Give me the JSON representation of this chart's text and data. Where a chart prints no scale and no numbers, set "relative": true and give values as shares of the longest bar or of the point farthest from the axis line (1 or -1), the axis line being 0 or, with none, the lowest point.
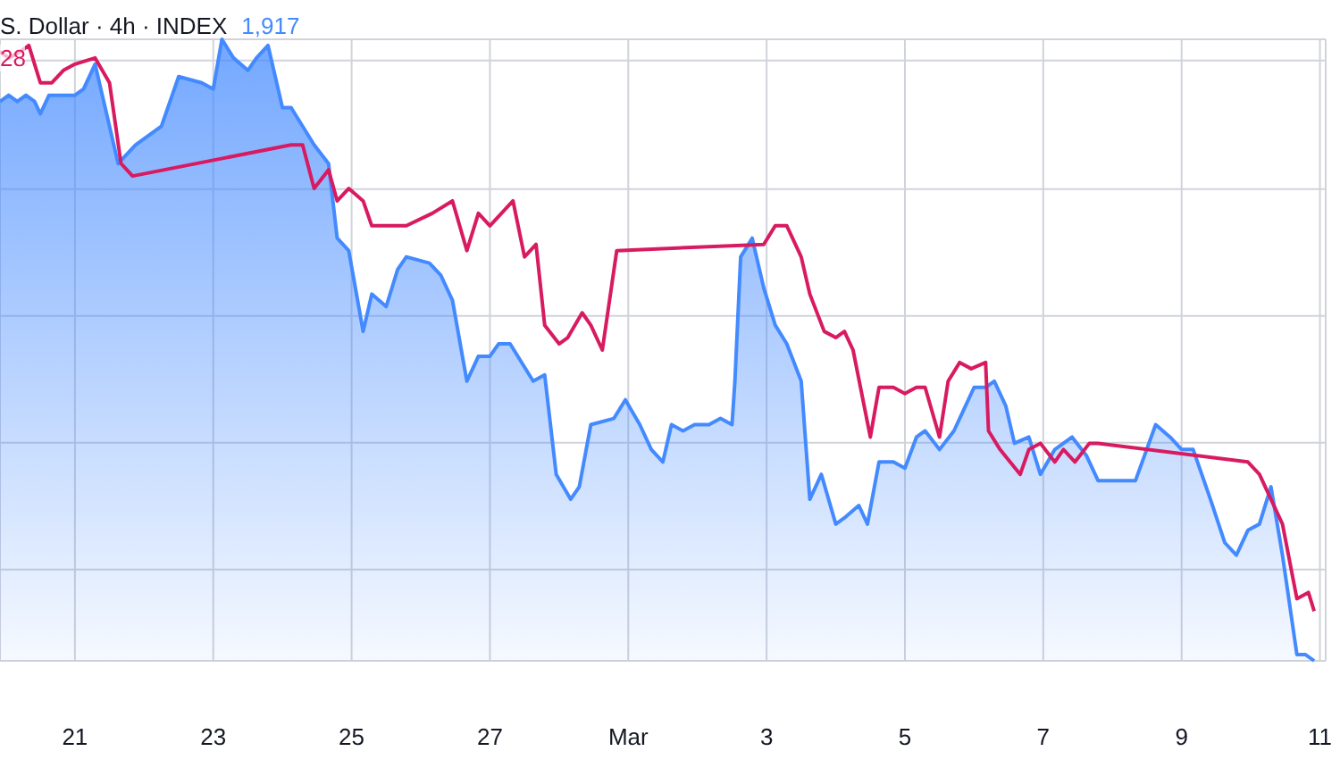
{
  "chart_data": {
    "type": "line",
    "title": "S. Dollar · 4h · INDEX",
    "annotations": [
      "1,917",
      "28"
    ],
    "relative": true,
    "grid": true,
    "xlim": [
      "--02-19T22:00",
      "--03-11T02:00"
    ],
    "xticks": [
      {
        "value": "--02-21",
        "label": "21"
      },
      {
        "value": "--02-23",
        "label": "23"
      },
      {
        "value": "--02-25",
        "label": "25"
      },
      {
        "value": "--02-27",
        "label": "27"
      },
      {
        "value": "--03-01",
        "label": "Mar"
      },
      {
        "value": "--03-03",
        "label": "3"
      },
      {
        "value": "--03-05",
        "label": "5"
      },
      {
        "value": "--03-07",
        "label": "7"
      },
      {
        "value": "--03-09",
        "label": "9"
      },
      {
        "value": "--03-11",
        "label": "11"
      }
    ],
    "series": [
      {
        "type": "area",
        "color": "#448aff",
        "x": [
          "--02-19T22:00",
          "--02-20T01:00",
          "--02-20T04:00",
          "--02-20T07:00",
          "--02-20T10:00",
          "--02-20T12:00",
          "--02-20T15:00",
          "--02-20T19:00",
          "--02-21T00:00",
          "--02-21T03:00",
          "--02-21T07:00",
          "--02-21T15:00",
          "--02-21T21:00",
          "--02-22T03:00",
          "--02-22T06:00",
          "--02-22T12:00",
          "--02-22T20:00",
          "--02-23T00:00",
          "--02-23T03:00",
          "--02-23T07:00",
          "--02-23T12:00",
          "--02-23T15:00",
          "--02-23T19:00",
          "--02-24T00:00",
          "--02-24T03:00",
          "--02-24T11:00",
          "--02-24T16:00",
          "--02-24T19:00",
          "--02-24T23:00",
          "--02-25T04:00",
          "--02-25T07:00",
          "--02-25T12:00",
          "--02-25T16:00",
          "--02-25T19:00",
          "--02-26T03:00",
          "--02-26T07:00",
          "--02-26T11:00",
          "--02-26T16:00",
          "--02-26T20:00",
          "--02-27T00:00",
          "--02-27T03:00",
          "--02-27T07:00",
          "--02-27T15:00",
          "--02-27T19:00",
          "--02-27T23:00",
          "--02-28T04:00",
          "--02-28T07:00",
          "--02-28T11:00",
          "--02-28T19:00",
          "--02-28T23:00",
          "--03-01T04:00",
          "--03-01T08:00",
          "--03-01T12:00",
          "--03-01T15:00",
          "--03-01T19:00",
          "--03-01T23:00",
          "--03-02T04:00",
          "--03-02T08:00",
          "--03-02T12:00",
          "--03-02T13:00",
          "--03-02T15:00",
          "--03-02T19:00",
          "--03-02T23:00",
          "--03-03T03:00",
          "--03-03T07:00",
          "--03-03T12:00",
          "--03-03T15:00",
          "--03-03T19:00",
          "--03-04T00:00",
          "--03-04T03:00",
          "--03-04T08:00",
          "--03-04T11:00",
          "--03-04T15:00",
          "--03-04T20:00",
          "--03-05T00:00",
          "--03-05T04:00",
          "--03-05T07:00",
          "--03-05T12:00",
          "--03-05T17:00",
          "--03-05T20:00",
          "--03-06T00:00",
          "--03-06T04:00",
          "--03-06T07:00",
          "--03-06T11:00",
          "--03-06T14:00",
          "--03-06T19:00",
          "--03-06T23:00",
          "--03-07T04:00",
          "--03-07T07:00",
          "--03-07T10:00",
          "--03-07T15:00",
          "--03-07T19:00",
          "--03-08T02:00",
          "--03-08T08:00",
          "--03-08T15:00",
          "--03-08T20:00",
          "--03-09T00:00",
          "--03-09T04:00",
          "--03-09T10:00",
          "--03-09T15:00",
          "--03-09T19:00",
          "--03-09T23:00",
          "--03-10T03:00",
          "--03-10T07:00",
          "--03-10T11:00",
          "--03-10T16:00",
          "--03-10T19:00",
          "--03-10T22:00"
        ],
        "values": [
          0.9,
          0.91,
          0.9,
          0.91,
          0.9,
          0.88,
          0.91,
          0.91,
          0.91,
          0.92,
          0.96,
          0.8,
          0.83,
          0.85,
          0.86,
          0.94,
          0.93,
          0.92,
          1.0,
          0.97,
          0.95,
          0.97,
          0.99,
          0.89,
          0.89,
          0.83,
          0.8,
          0.68,
          0.66,
          0.53,
          0.59,
          0.57,
          0.63,
          0.65,
          0.64,
          0.62,
          0.58,
          0.45,
          0.49,
          0.49,
          0.51,
          0.51,
          0.45,
          0.46,
          0.3,
          0.26,
          0.28,
          0.38,
          0.39,
          0.42,
          0.38,
          0.34,
          0.32,
          0.38,
          0.37,
          0.38,
          0.38,
          0.39,
          0.38,
          0.45,
          0.65,
          0.68,
          0.6,
          0.54,
          0.51,
          0.45,
          0.26,
          0.3,
          0.22,
          0.23,
          0.25,
          0.22,
          0.32,
          0.32,
          0.31,
          0.36,
          0.37,
          0.34,
          0.37,
          0.4,
          0.44,
          0.44,
          0.45,
          0.41,
          0.35,
          0.36,
          0.3,
          0.34,
          0.35,
          0.36,
          0.33,
          0.29,
          0.29,
          0.29,
          0.38,
          0.36,
          0.34,
          0.34,
          0.26,
          0.19,
          0.17,
          0.21,
          0.22,
          0.28,
          0.17,
          0.01,
          0.01,
          0
        ]
      },
      {
        "type": "line",
        "color": "#d81b60",
        "x": [
          "--02-19T22:00",
          "--02-20T01:00",
          "--02-20T05:00",
          "--02-20T08:00",
          "--02-20T12:00",
          "--02-20T16:00",
          "--02-20T20:00",
          "--02-21T00:00",
          "--02-21T07:00",
          "--02-21T12:00",
          "--02-21T16:00",
          "--02-21T20:00",
          "--02-24T03:00",
          "--02-24T07:00",
          "--02-24T11:00",
          "--02-24T16:00",
          "--02-24T19:00",
          "--02-24T23:00",
          "--02-25T04:00",
          "--02-25T07:00",
          "--02-25T12:00",
          "--02-25T16:00",
          "--02-25T19:00",
          "--02-26T04:00",
          "--02-26T11:00",
          "--02-26T16:00",
          "--02-26T20:00",
          "--02-27T00:00",
          "--02-27T04:00",
          "--02-27T08:00",
          "--02-27T12:00",
          "--02-27T16:00",
          "--02-27T19:00",
          "--02-28T00:00",
          "--02-28T03:00",
          "--02-28T08:00",
          "--02-28T11:00",
          "--02-28T15:00",
          "--02-28T20:00",
          "--03-02T23:00",
          "--03-03T03:00",
          "--03-03T07:00",
          "--03-03T12:00",
          "--03-03T15:00",
          "--03-03T20:00",
          "--03-04T00:00",
          "--03-04T03:00",
          "--03-04T06:00",
          "--03-04T12:00",
          "--03-04T15:00",
          "--03-04T20:00",
          "--03-05T00:00",
          "--03-05T04:00",
          "--03-05T07:00",
          "--03-05T12:00",
          "--03-05T15:00",
          "--03-05T19:00",
          "--03-05T23:00",
          "--03-06T04:00",
          "--03-06T05:00",
          "--03-06T09:00",
          "--03-06T16:00",
          "--03-06T19:00",
          "--03-06T23:00",
          "--03-07T04:00",
          "--03-07T07:00",
          "--03-07T11:00",
          "--03-07T16:00",
          "--03-07T19:00",
          "--03-09T23:00",
          "--03-10T03:00",
          "--03-10T11:00",
          "--03-10T16:00",
          "--03-10T20:00",
          "--03-10T22:00"
        ],
        "values": [
          0.98,
          0.97,
          0.98,
          0.99,
          0.93,
          0.93,
          0.95,
          0.96,
          0.97,
          0.93,
          0.8,
          0.78,
          0.83,
          0.83,
          0.76,
          0.79,
          0.74,
          0.76,
          0.74,
          0.7,
          0.7,
          0.7,
          0.7,
          0.72,
          0.74,
          0.66,
          0.72,
          0.7,
          0.72,
          0.74,
          0.65,
          0.67,
          0.54,
          0.51,
          0.52,
          0.56,
          0.54,
          0.5,
          0.66,
          0.67,
          0.7,
          0.7,
          0.65,
          0.59,
          0.53,
          0.52,
          0.53,
          0.5,
          0.36,
          0.44,
          0.44,
          0.43,
          0.44,
          0.44,
          0.36,
          0.45,
          0.48,
          0.47,
          0.48,
          0.37,
          0.34,
          0.3,
          0.34,
          0.35,
          0.32,
          0.34,
          0.32,
          0.35,
          0.35,
          0.32,
          0.3,
          0.22,
          0.1,
          0.11,
          0.08
        ]
      }
    ]
  }
}
